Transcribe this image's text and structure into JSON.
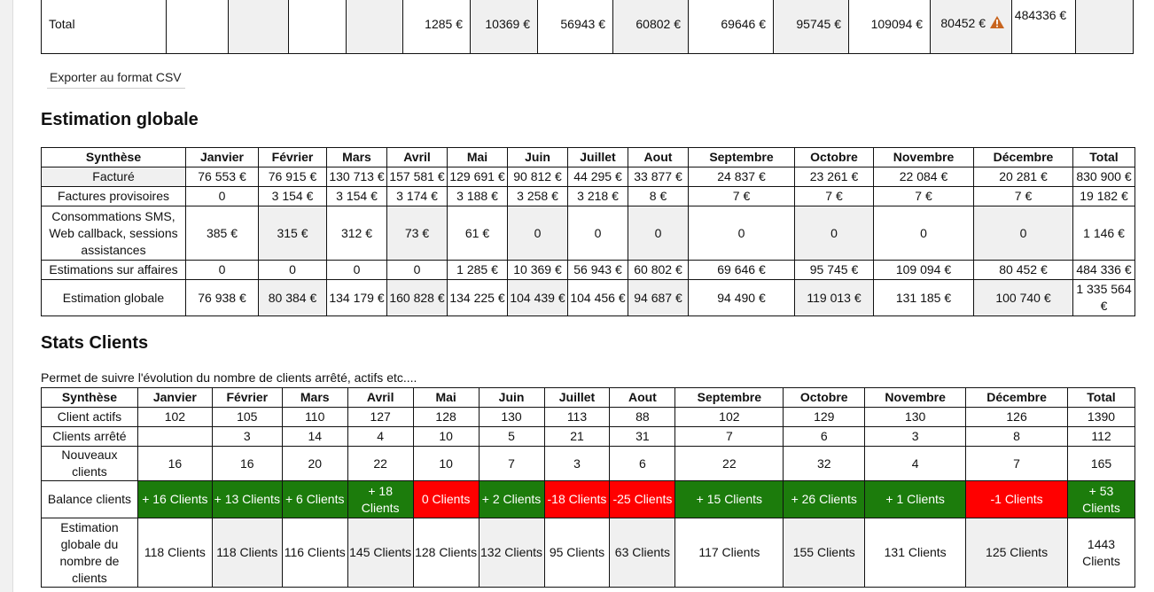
{
  "top_table": {
    "row_label": "Total",
    "values": [
      "1285 €",
      "10369 €",
      "56943 €",
      "60802 €",
      "69646 €",
      "95745 €",
      "109094 €",
      "80452 €",
      "484336 €"
    ]
  },
  "export_button": "Exporter au format CSV",
  "estimation": {
    "title": "Estimation globale",
    "headers": [
      "Synthèse",
      "Janvier",
      "Février",
      "Mars",
      "Avril",
      "Mai",
      "Juin",
      "Juillet",
      "Aout",
      "Septembre",
      "Octobre",
      "Novembre",
      "Décembre",
      "Total"
    ],
    "rows": [
      [
        "Facturé",
        "76 553 €",
        "76 915 €",
        "130 713 €",
        "157 581 €",
        "129 691 €",
        "90 812 €",
        "44 295 €",
        "33 877 €",
        "24 837 €",
        "23 261 €",
        "22 084 €",
        "20 281 €",
        "830 900 €"
      ],
      [
        "Factures provisoires",
        "0",
        "3 154 €",
        "3 154 €",
        "3 174 €",
        "3 188 €",
        "3 258 €",
        "3 218 €",
        "8 €",
        "7 €",
        "7 €",
        "7 €",
        "7 €",
        "19 182 €"
      ],
      [
        "Consommations SMS, Web callback, sessions assistances",
        "385 €",
        "315 €",
        "312 €",
        "73 €",
        "61 €",
        "0",
        "0",
        "0",
        "0",
        "0",
        "0",
        "0",
        "1 146 €"
      ],
      [
        "Estimations sur affaires",
        "0",
        "0",
        "0",
        "0",
        "1 285 €",
        "10 369 €",
        "56 943 €",
        "60 802 €",
        "69 646 €",
        "95 745 €",
        "109 094 €",
        "80 452 €",
        "484 336 €"
      ],
      [
        "Estimation globale",
        "76 938 €",
        "80 384 €",
        "134 179 €",
        "160 828 €",
        "134 225 €",
        "104 439 €",
        "104 456 €",
        "94 687 €",
        "94 490 €",
        "119 013 €",
        "131 185 €",
        "100 740 €",
        "1 335 564 €"
      ]
    ]
  },
  "stats": {
    "title": "Stats Clients",
    "description": "Permet de suivre l'évolution du nombre de clients arrêté, actifs etc....",
    "headers": [
      "Synthèse",
      "Janvier",
      "Février",
      "Mars",
      "Avril",
      "Mai",
      "Juin",
      "Juillet",
      "Aout",
      "Septembre",
      "Octobre",
      "Novembre",
      "Décembre",
      "Total"
    ],
    "rows": [
      [
        "Client actifs",
        "102",
        "105",
        "110",
        "127",
        "128",
        "130",
        "113",
        "88",
        "102",
        "129",
        "130",
        "126",
        "1390"
      ],
      [
        "Clients arrêté",
        "",
        "3",
        "14",
        "4",
        "10",
        "5",
        "21",
        "31",
        "7",
        "6",
        "3",
        "8",
        "112"
      ],
      [
        "Nouveaux clients",
        "16",
        "16",
        "20",
        "22",
        "10",
        "7",
        "3",
        "6",
        "22",
        "32",
        "4",
        "7",
        "165"
      ]
    ],
    "balance": {
      "label": "Balance clients",
      "values": [
        "+ 16 Clients",
        "+ 13 Clients",
        "+ 6 Clients",
        "+ 18 Clients",
        "0 Clients",
        "+ 2 Clients",
        "-18 Clients",
        "-25 Clients",
        "+ 15 Clients",
        "+ 26 Clients",
        "+ 1 Clients",
        "-1 Clients",
        "+ 53 Clients"
      ],
      "status": [
        "pos",
        "pos",
        "pos",
        "pos",
        "neg",
        "pos",
        "neg",
        "neg",
        "pos",
        "pos",
        "pos",
        "neg",
        "pos"
      ]
    },
    "estimate": {
      "label": "Estimation globale du nombre de clients",
      "values": [
        "118 Clients",
        "118 Clients",
        "116 Clients",
        "145 Clients",
        "128 Clients",
        "132 Clients",
        "95 Clients",
        "63 Clients",
        "117 Clients",
        "155 Clients",
        "131 Clients",
        "125 Clients",
        "1443 Clients"
      ]
    }
  },
  "colors": {
    "positive": "#1c7c0c",
    "negative": "#ff0000",
    "warning": "#c8641e"
  }
}
